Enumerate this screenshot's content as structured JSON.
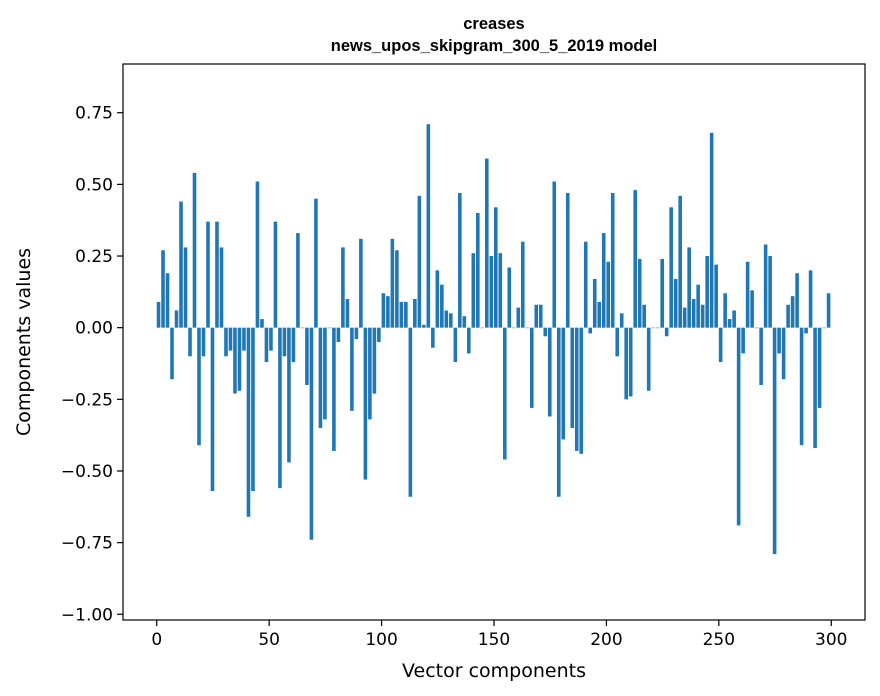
{
  "chart_data": {
    "type": "bar",
    "title": "creases",
    "subtitle": "news_upos_skipgram_300_5_2019 model",
    "xlabel": "Vector components",
    "ylabel": "Components values",
    "xlim": [
      -15,
      315
    ],
    "ylim": [
      -1.02,
      0.92
    ],
    "x_ticks": [
      0,
      50,
      100,
      150,
      200,
      250,
      300
    ],
    "y_ticks": [
      -1.0,
      -0.75,
      -0.5,
      -0.25,
      0.0,
      0.25,
      0.5,
      0.75
    ],
    "y_tick_labels": [
      "−1.00",
      "−0.75",
      "−0.50",
      "−0.25",
      "0.00",
      "0.25",
      "0.50",
      "0.75"
    ],
    "grid": false,
    "color": "#1f77b4",
    "values": [
      0.09,
      0.27,
      0.19,
      -0.18,
      0.06,
      0.44,
      0.28,
      -0.1,
      0.54,
      -0.41,
      -0.1,
      0.37,
      -0.57,
      0.37,
      0.28,
      -0.1,
      -0.08,
      -0.23,
      -0.22,
      -0.08,
      -0.66,
      -0.57,
      0.51,
      0.03,
      -0.12,
      -0.08,
      0.37,
      -0.56,
      -0.1,
      -0.47,
      -0.12,
      0.33,
      0.0,
      -0.2,
      -0.74,
      0.45,
      -0.35,
      -0.32,
      0.0,
      -0.43,
      -0.05,
      0.28,
      0.1,
      -0.29,
      -0.04,
      0.31,
      -0.53,
      -0.32,
      -0.23,
      -0.05,
      0.12,
      0.11,
      0.31,
      0.27,
      0.09,
      0.09,
      -0.59,
      0.1,
      0.46,
      0.01,
      0.71,
      -0.07,
      0.2,
      0.15,
      0.06,
      0.05,
      -0.12,
      0.47,
      0.04,
      -0.09,
      0.26,
      0.4,
      0.0,
      0.59,
      0.25,
      0.42,
      0.26,
      -0.46,
      0.21,
      0.0,
      0.07,
      0.3,
      0.0,
      -0.28,
      0.08,
      0.08,
      -0.03,
      -0.31,
      0.51,
      -0.59,
      -0.39,
      0.47,
      -0.35,
      -0.43,
      -0.44,
      0.3,
      -0.02,
      0.17,
      0.09,
      0.33,
      0.23,
      0.47,
      -0.1,
      0.05,
      -0.25,
      -0.24,
      0.48,
      0.24,
      0.08,
      -0.22,
      0.0,
      0.0,
      0.24,
      -0.03,
      0.42,
      0.17,
      0.46,
      0.07,
      0.28,
      0.1,
      0.15,
      0.08,
      0.25,
      0.68,
      0.22,
      -0.12,
      0.12,
      0.03,
      0.06,
      -0.69,
      -0.09,
      0.23,
      0.13,
      0.0,
      -0.2,
      0.29,
      0.25,
      -0.79,
      -0.09,
      -0.18,
      0.08,
      0.11,
      0.19,
      -0.41,
      -0.02,
      0.2,
      -0.42,
      -0.28,
      0.0,
      0.12
    ]
  }
}
